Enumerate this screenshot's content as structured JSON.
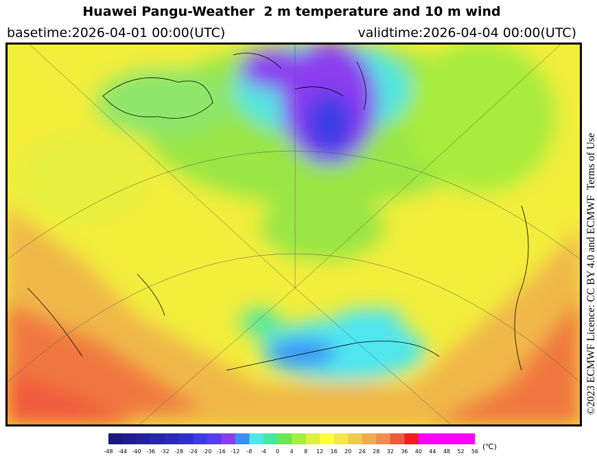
{
  "header": {
    "title": "Huawei Pangu-Weather  2 m temperature and 10 m wind",
    "basetime": "basetime:2026-04-01 00:00(UTC)",
    "validtime": "validtime:2026-04-04 00:00(UTC)"
  },
  "licence": "©2023 ECMWF Licence: CC BY 4.0 and ECMWF  Terms of Use",
  "colorbar": {
    "ticks": [
      -48,
      -44,
      -40,
      -36,
      -32,
      -28,
      -24,
      -20,
      -16,
      -12,
      -8,
      -4,
      0,
      4,
      8,
      12,
      16,
      20,
      24,
      28,
      32,
      36,
      40,
      44,
      48,
      52,
      56
    ],
    "colors": [
      "#1a1a80",
      "#1e1e8e",
      "#22229a",
      "#2626a6",
      "#2a2ab4",
      "#3030c8",
      "#3c3ce6",
      "#5a3cf0",
      "#8c3cf0",
      "#3c8cf5",
      "#50e6f0",
      "#46e6a0",
      "#6ee650",
      "#a0f03c",
      "#dcf03c",
      "#ffff3c",
      "#f5e650",
      "#f0c850",
      "#f0aa50",
      "#f08c50",
      "#f05a3c",
      "#f01e1e",
      "#ff00ff",
      "#ff00ff",
      "#ff00ff",
      "#ff00ff"
    ],
    "unit": "(℃)"
  }
}
